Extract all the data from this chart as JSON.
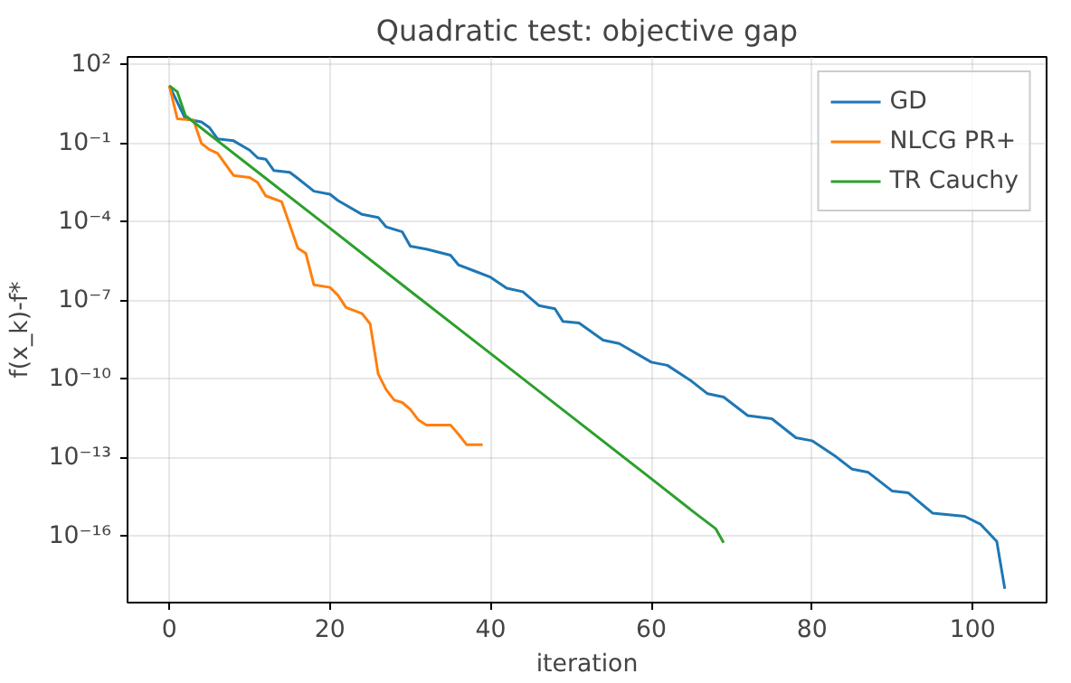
{
  "chart_data": {
    "type": "line",
    "title": "Quadratic test: objective gap",
    "xlabel": "iteration",
    "ylabel": "f(x_k)-f*",
    "log": "y",
    "grid": true,
    "legend": "top right",
    "line_style": "solid",
    "marker": "none",
    "xlim": [
      -5.2,
      109.2
    ],
    "xticks": [
      0,
      20,
      40,
      60,
      80,
      100
    ],
    "ylim": [
      3e-19,
      200
    ],
    "yticks": [
      {
        "value": 100,
        "label": "10²"
      },
      {
        "value": 0.1,
        "label": "10⁻¹"
      },
      {
        "value": 0.0001,
        "label": "10⁻⁴"
      },
      {
        "value": 1e-07,
        "label": "10⁻⁷"
      },
      {
        "value": 1e-10,
        "label": "10⁻¹⁰"
      },
      {
        "value": 1e-13,
        "label": "10⁻¹³"
      },
      {
        "value": 1e-16,
        "label": "10⁻¹⁶"
      }
    ],
    "series": [
      {
        "name": "GD",
        "color": "#1f77b4",
        "x": [
          0,
          2,
          4,
          5,
          6,
          8,
          10,
          11,
          12,
          13,
          15,
          16,
          18,
          20,
          21,
          24,
          26,
          27,
          29,
          30,
          32,
          35,
          36,
          38,
          40,
          42,
          44,
          46,
          48,
          49,
          51,
          54,
          56,
          60,
          62,
          65,
          67,
          69,
          72,
          75,
          78,
          80,
          83,
          85,
          87,
          90,
          92,
          95,
          99,
          101,
          103,
          104
        ],
        "values": [
          16,
          0.87,
          0.66,
          0.4,
          0.15,
          0.126,
          0.055,
          0.028,
          0.025,
          0.0093,
          0.0079,
          0.0046,
          0.0015,
          0.00115,
          0.00066,
          0.000195,
          0.00015,
          6.5e-05,
          4.2e-05,
          1.2e-05,
          9.3e-06,
          5.4e-06,
          2.3e-06,
          1.35e-06,
          7.8e-07,
          3e-07,
          2.2e-07,
          6.5e-08,
          4.9e-08,
          1.6e-08,
          1.4e-08,
          3.1e-09,
          2.3e-09,
          4.5e-10,
          3.4e-10,
          8.5e-11,
          2.8e-11,
          2.1e-11,
          4.1e-12,
          3.1e-12,
          5.9e-13,
          4.5e-13,
          1.1e-13,
          3.7e-14,
          2.8e-14,
          5.4e-15,
          4.6e-15,
          7.8e-16,
          5.9e-16,
          2.9e-16,
          6.5e-17,
          1e-18
        ]
      },
      {
        "name": "NLCG PR+",
        "color": "#ff7f0e",
        "x": [
          0,
          1,
          3,
          4,
          5,
          6,
          8,
          10,
          11,
          12,
          14,
          16,
          17,
          18,
          20,
          21,
          22,
          24,
          25,
          26,
          27,
          28,
          29,
          30,
          31,
          32,
          35,
          36,
          37,
          39
        ],
        "values": [
          16,
          0.87,
          0.78,
          0.1,
          0.058,
          0.042,
          0.006,
          0.005,
          0.0032,
          0.001,
          0.00059,
          1e-05,
          6.3e-06,
          4e-07,
          3.2e-07,
          1.6e-07,
          5.5e-08,
          3.2e-08,
          1.3e-08,
          1.6e-10,
          4e-11,
          1.6e-11,
          1.3e-11,
          7.1e-12,
          2.8e-12,
          1.8e-12,
          1.8e-12,
          7.9e-13,
          3.2e-13,
          3.2e-13
        ]
      },
      {
        "name": "TR Cauchy",
        "color": "#2ca02c",
        "x": [
          0,
          1,
          2,
          10,
          20,
          30,
          40,
          50,
          60,
          65,
          67,
          68,
          69
        ],
        "values": [
          16,
          9.3,
          1.15,
          0.014,
          5.8e-05,
          2.3e-07,
          9.5e-10,
          3.9e-12,
          1.6e-14,
          1e-15,
          3.4e-16,
          2e-16,
          5.8e-17
        ]
      }
    ]
  }
}
